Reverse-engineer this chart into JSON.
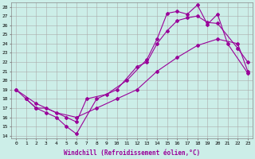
{
  "xlabel": "Windchill (Refroidissement éolien,°C)",
  "bg_color": "#cceee8",
  "line_color": "#990099",
  "grid_color": "#aaaaaa",
  "xlim": [
    -0.5,
    23.5
  ],
  "ylim": [
    13.7,
    28.5
  ],
  "xticks": [
    0,
    1,
    2,
    3,
    4,
    5,
    6,
    7,
    8,
    9,
    10,
    11,
    12,
    13,
    14,
    15,
    16,
    17,
    18,
    19,
    20,
    21,
    22,
    23
  ],
  "yticks": [
    14,
    15,
    16,
    17,
    18,
    19,
    20,
    21,
    22,
    23,
    24,
    25,
    26,
    27,
    28
  ],
  "line1_x": [
    0,
    1,
    2,
    3,
    5,
    6,
    7,
    9,
    11,
    13,
    14,
    15,
    16,
    17,
    18,
    19,
    20,
    21,
    23
  ],
  "line1_y": [
    19,
    18,
    17,
    17,
    16,
    15.5,
    18,
    18.5,
    20,
    22.3,
    24.5,
    27.3,
    27.5,
    27.2,
    28.2,
    26.1,
    27.2,
    24.0,
    20.8
  ],
  "line2_x": [
    1,
    2,
    3,
    4,
    5,
    6,
    8,
    10,
    12,
    13,
    14,
    15,
    16,
    17,
    18,
    19,
    20,
    22,
    23
  ],
  "line2_y": [
    18,
    17,
    16.5,
    16,
    15,
    14.2,
    18,
    19,
    21.5,
    22,
    24,
    25.4,
    26.5,
    26.8,
    27.0,
    26.3,
    26.2,
    23.5,
    22.0
  ],
  "line3_x": [
    0,
    2,
    4,
    6,
    8,
    10,
    12,
    14,
    16,
    18,
    20,
    22,
    23
  ],
  "line3_y": [
    19,
    17.5,
    16.5,
    16,
    17,
    18,
    19,
    21,
    22.5,
    23.8,
    24.5,
    24.0,
    21.0
  ]
}
